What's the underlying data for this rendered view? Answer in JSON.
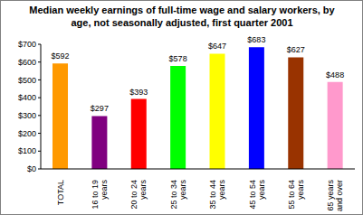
{
  "chart_data": {
    "type": "bar",
    "title": "Median weekly earnings of full-time wage and salary workers, by age, not seasonally adjusted, first quarter 2001",
    "categories": [
      "TOTAL",
      "16 to 19 years",
      "20 to 24 years",
      "25 to 34 years",
      "35 to 44 years",
      "45 to 54 years",
      "55 to 64 years",
      "65 years and over"
    ],
    "values": [
      592,
      297,
      393,
      578,
      647,
      683,
      627,
      488
    ],
    "value_labels": [
      "$592",
      "$297",
      "$393",
      "$578",
      "$647",
      "$683",
      "$627",
      "$488"
    ],
    "colors": [
      "#ff9900",
      "#800080",
      "#ff0000",
      "#00ff00",
      "#ffff00",
      "#0000ff",
      "#993300",
      "#ff99cc"
    ],
    "ylim": [
      0,
      700
    ],
    "yticks": [
      {
        "value": 0,
        "label": "$0"
      },
      {
        "value": 100,
        "label": "$100"
      },
      {
        "value": 200,
        "label": "$200"
      },
      {
        "value": 300,
        "label": "$300"
      },
      {
        "value": 400,
        "label": "$400"
      },
      {
        "value": 500,
        "label": "$500"
      },
      {
        "value": 600,
        "label": "$600"
      },
      {
        "value": 700,
        "label": "$700"
      }
    ],
    "data_labels": true,
    "grid": false
  }
}
